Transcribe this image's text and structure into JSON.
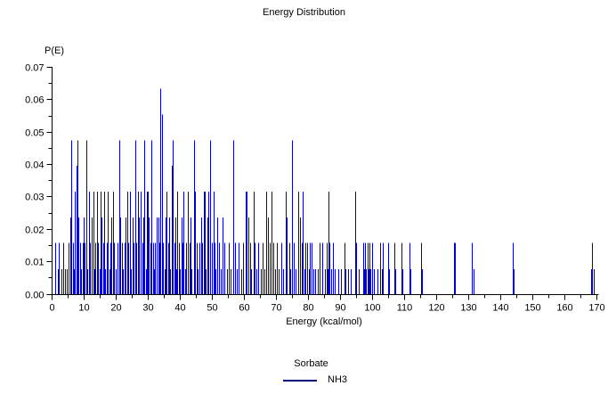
{
  "title": "Energy Distribution",
  "y_axis": {
    "title": "P(E)",
    "tick_labels": [
      "0.00",
      "0.01",
      "0.02",
      "0.03",
      "0.04",
      "0.05",
      "0.06",
      "0.07"
    ],
    "minor_tick_step": 0.005,
    "min": 0,
    "max": 0.07
  },
  "x_axis": {
    "title": "Energy (kcal/mol)",
    "tick_labels": [
      "0",
      "10",
      "20",
      "30",
      "40",
      "50",
      "60",
      "70",
      "80",
      "90",
      "100",
      "110",
      "120",
      "130",
      "140",
      "150",
      "160",
      "170"
    ],
    "minor_tick_step": 5,
    "min": 0,
    "max": 170
  },
  "legend": {
    "title": "Sorbate",
    "series_label": "NH3",
    "line_color": "#000080"
  },
  "colors": {
    "spike": "#0000CD",
    "axis": "#000000",
    "text": "#000000",
    "background": "#FFFFFF"
  },
  "chart_data": {
    "type": "stick",
    "title": "Energy Distribution",
    "xlabel": "Energy (kcal/mol)",
    "ylabel": "P(E)",
    "series_name": "NH3",
    "xlim": [
      0,
      170
    ],
    "ylim": [
      0,
      0.07
    ],
    "grid": false,
    "legend_position": "bottom-center",
    "y_quantum": 0.0079,
    "points": [
      [
        1.0,
        0.0159
      ],
      [
        1.7,
        0.0079
      ],
      [
        2.2,
        0.0159
      ],
      [
        2.8,
        0.0079
      ],
      [
        3.4,
        0.0159
      ],
      [
        4.0,
        0.0079
      ],
      [
        4.5,
        0.0079
      ],
      [
        5.2,
        0.0159
      ],
      [
        5.8,
        0.0238
      ],
      [
        6.1,
        0.0476
      ],
      [
        6.4,
        0.0159
      ],
      [
        6.8,
        0.0079
      ],
      [
        7.2,
        0.0317
      ],
      [
        7.6,
        0.0397
      ],
      [
        7.9,
        0.0476
      ],
      [
        8.3,
        0.0238
      ],
      [
        8.7,
        0.0159
      ],
      [
        9.1,
        0.0079
      ],
      [
        9.5,
        0.0159
      ],
      [
        9.9,
        0.0238
      ],
      [
        10.2,
        0.0159
      ],
      [
        10.6,
        0.0476
      ],
      [
        11.0,
        0.0079
      ],
      [
        11.4,
        0.0317
      ],
      [
        11.9,
        0.0159
      ],
      [
        12.3,
        0.0238
      ],
      [
        12.9,
        0.0317
      ],
      [
        13.3,
        0.0079
      ],
      [
        13.6,
        0.0159
      ],
      [
        14.0,
        0.0317
      ],
      [
        14.4,
        0.0159
      ],
      [
        14.8,
        0.0079
      ],
      [
        15.1,
        0.0317
      ],
      [
        15.5,
        0.0238
      ],
      [
        15.9,
        0.0159
      ],
      [
        16.2,
        0.0317
      ],
      [
        16.6,
        0.0079
      ],
      [
        17.0,
        0.0159
      ],
      [
        17.3,
        0.0317
      ],
      [
        17.8,
        0.0079
      ],
      [
        18.2,
        0.0159
      ],
      [
        18.6,
        0.0238
      ],
      [
        18.9,
        0.0317
      ],
      [
        19.4,
        0.0159
      ],
      [
        19.8,
        0.0079
      ],
      [
        20.3,
        0.0159
      ],
      [
        20.9,
        0.0476
      ],
      [
        21.3,
        0.0238
      ],
      [
        21.7,
        0.0159
      ],
      [
        22.1,
        0.0079
      ],
      [
        22.6,
        0.0159
      ],
      [
        23.0,
        0.0238
      ],
      [
        23.4,
        0.0317
      ],
      [
        23.8,
        0.0159
      ],
      [
        24.2,
        0.0317
      ],
      [
        24.7,
        0.0079
      ],
      [
        25.1,
        0.0238
      ],
      [
        25.5,
        0.0159
      ],
      [
        26.0,
        0.0476
      ],
      [
        26.3,
        0.0159
      ],
      [
        26.7,
        0.0317
      ],
      [
        27.1,
        0.0238
      ],
      [
        27.7,
        0.0317
      ],
      [
        28.1,
        0.0159
      ],
      [
        28.4,
        0.0238
      ],
      [
        28.8,
        0.0476
      ],
      [
        29.2,
        0.0079
      ],
      [
        29.5,
        0.0317
      ],
      [
        29.9,
        0.0317
      ],
      [
        30.2,
        0.0238
      ],
      [
        30.6,
        0.0159
      ],
      [
        31.0,
        0.0476
      ],
      [
        31.4,
        0.0159
      ],
      [
        31.8,
        0.0079
      ],
      [
        32.2,
        0.0159
      ],
      [
        32.7,
        0.0238
      ],
      [
        33.1,
        0.0238
      ],
      [
        33.4,
        0.0159
      ],
      [
        33.8,
        0.0635
      ],
      [
        34.3,
        0.0556
      ],
      [
        34.7,
        0.0159
      ],
      [
        35.1,
        0.0079
      ],
      [
        35.4,
        0.0238
      ],
      [
        35.8,
        0.0317
      ],
      [
        36.2,
        0.0159
      ],
      [
        36.5,
        0.0238
      ],
      [
        36.9,
        0.0079
      ],
      [
        37.3,
        0.0397
      ],
      [
        37.7,
        0.0476
      ],
      [
        38.1,
        0.0159
      ],
      [
        38.4,
        0.0238
      ],
      [
        38.8,
        0.0079
      ],
      [
        39.1,
        0.0317
      ],
      [
        39.5,
        0.0159
      ],
      [
        39.9,
        0.0079
      ],
      [
        40.3,
        0.0238
      ],
      [
        40.7,
        0.0159
      ],
      [
        41.1,
        0.0317
      ],
      [
        41.5,
        0.0079
      ],
      [
        41.9,
        0.0159
      ],
      [
        42.3,
        0.0317
      ],
      [
        42.8,
        0.0159
      ],
      [
        43.2,
        0.0238
      ],
      [
        43.6,
        0.0079
      ],
      [
        44.2,
        0.0476
      ],
      [
        44.6,
        0.0317
      ],
      [
        45.0,
        0.0159
      ],
      [
        45.5,
        0.0079
      ],
      [
        45.9,
        0.0159
      ],
      [
        46.4,
        0.0238
      ],
      [
        46.8,
        0.0159
      ],
      [
        47.3,
        0.0317
      ],
      [
        47.6,
        0.0317
      ],
      [
        48.0,
        0.0079
      ],
      [
        48.4,
        0.0238
      ],
      [
        48.8,
        0.0317
      ],
      [
        49.4,
        0.0476
      ],
      [
        49.8,
        0.0159
      ],
      [
        50.3,
        0.0317
      ],
      [
        50.7,
        0.0159
      ],
      [
        51.1,
        0.0079
      ],
      [
        51.6,
        0.0238
      ],
      [
        52.1,
        0.0159
      ],
      [
        52.6,
        0.0079
      ],
      [
        53.2,
        0.0238
      ],
      [
        53.8,
        0.0159
      ],
      [
        54.5,
        0.0079
      ],
      [
        55.1,
        0.0159
      ],
      [
        55.8,
        0.0079
      ],
      [
        56.6,
        0.0476
      ],
      [
        57.0,
        0.0159
      ],
      [
        57.5,
        0.0079
      ],
      [
        58.2,
        0.0159
      ],
      [
        59.0,
        0.0079
      ],
      [
        59.6,
        0.0159
      ],
      [
        60.3,
        0.0317
      ],
      [
        60.6,
        0.0317
      ],
      [
        61.2,
        0.0238
      ],
      [
        61.7,
        0.0159
      ],
      [
        62.2,
        0.0079
      ],
      [
        62.8,
        0.0317
      ],
      [
        63.3,
        0.0159
      ],
      [
        63.8,
        0.0079
      ],
      [
        64.4,
        0.0159
      ],
      [
        65.0,
        0.0079
      ],
      [
        65.6,
        0.0159
      ],
      [
        66.2,
        0.0079
      ],
      [
        66.8,
        0.0317
      ],
      [
        67.3,
        0.0238
      ],
      [
        67.8,
        0.0159
      ],
      [
        68.5,
        0.0317
      ],
      [
        69.0,
        0.0159
      ],
      [
        69.6,
        0.0079
      ],
      [
        70.2,
        0.0159
      ],
      [
        70.8,
        0.0079
      ],
      [
        71.4,
        0.0159
      ],
      [
        72.0,
        0.0079
      ],
      [
        72.8,
        0.0317
      ],
      [
        73.3,
        0.0238
      ],
      [
        73.9,
        0.0159
      ],
      [
        74.4,
        0.0079
      ],
      [
        74.9,
        0.0476
      ],
      [
        75.4,
        0.0159
      ],
      [
        76.0,
        0.0079
      ],
      [
        76.7,
        0.0317
      ],
      [
        77.3,
        0.0238
      ],
      [
        77.9,
        0.0159
      ],
      [
        78.2,
        0.0317
      ],
      [
        78.8,
        0.0079
      ],
      [
        79.1,
        0.0159
      ],
      [
        79.7,
        0.0159
      ],
      [
        80.2,
        0.0079
      ],
      [
        80.5,
        0.0159
      ],
      [
        81.1,
        0.0159
      ],
      [
        81.6,
        0.0079
      ],
      [
        82.2,
        0.0079
      ],
      [
        83.0,
        0.0079
      ],
      [
        83.6,
        0.0159
      ],
      [
        84.3,
        0.0159
      ],
      [
        85.0,
        0.0079
      ],
      [
        85.6,
        0.0159
      ],
      [
        85.9,
        0.0079
      ],
      [
        86.2,
        0.0317
      ],
      [
        86.5,
        0.0159
      ],
      [
        87.0,
        0.0079
      ],
      [
        87.6,
        0.0159
      ],
      [
        88.3,
        0.0079
      ],
      [
        89.2,
        0.0079
      ],
      [
        90.1,
        0.0079
      ],
      [
        91.2,
        0.0159
      ],
      [
        91.5,
        0.0079
      ],
      [
        92.3,
        0.0079
      ],
      [
        93.2,
        0.0079
      ],
      [
        94.6,
        0.0317
      ],
      [
        94.9,
        0.0159
      ],
      [
        95.7,
        0.0079
      ],
      [
        97.1,
        0.0159
      ],
      [
        97.4,
        0.0079
      ],
      [
        97.7,
        0.0159
      ],
      [
        98.0,
        0.0079
      ],
      [
        98.4,
        0.0159
      ],
      [
        98.7,
        0.0079
      ],
      [
        99.1,
        0.0159
      ],
      [
        99.4,
        0.0079
      ],
      [
        99.8,
        0.0159
      ],
      [
        100.3,
        0.0079
      ],
      [
        101.5,
        0.0079
      ],
      [
        102.4,
        0.0159
      ],
      [
        102.8,
        0.0079
      ],
      [
        103.2,
        0.0159
      ],
      [
        104.8,
        0.0159
      ],
      [
        105.1,
        0.0079
      ],
      [
        106.8,
        0.0159
      ],
      [
        107.1,
        0.0079
      ],
      [
        109.1,
        0.0159
      ],
      [
        109.4,
        0.0079
      ],
      [
        111.4,
        0.0159
      ],
      [
        111.7,
        0.0079
      ],
      [
        115.1,
        0.0159
      ],
      [
        115.4,
        0.0079
      ],
      [
        125.4,
        0.0159
      ],
      [
        125.8,
        0.0159
      ],
      [
        131.1,
        0.0159
      ],
      [
        131.4,
        0.0079
      ],
      [
        143.7,
        0.0159
      ],
      [
        144.0,
        0.0079
      ],
      [
        168.3,
        0.0079
      ],
      [
        168.6,
        0.0159
      ],
      [
        168.9,
        0.0079
      ]
    ]
  }
}
